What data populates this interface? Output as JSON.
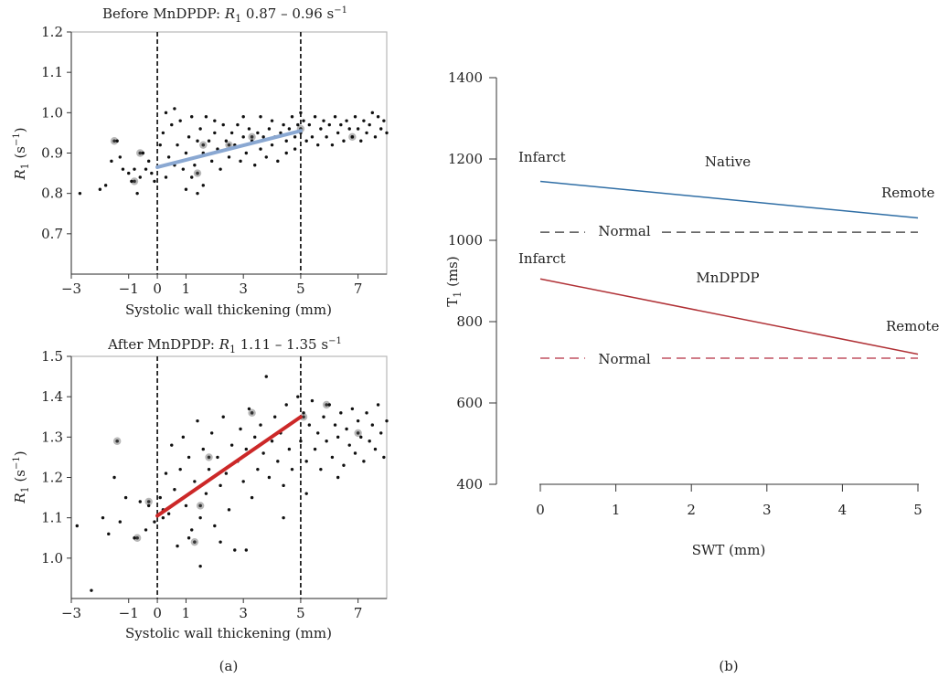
{
  "panels": {
    "a_label": "(a)",
    "b_label": "(b)"
  },
  "chart_data": [
    {
      "id": "before",
      "type": "scatter",
      "title_prefix": "Before MnDPDP: ",
      "title_symbol": "R",
      "title_sub": "1",
      "title_suffix": " 0.87 – 0.96 s",
      "title_sup": "−1",
      "xlabel": "Systolic wall thickening (mm)",
      "ylabel_symbol": "R",
      "ylabel_sub": "1",
      "ylabel_unit": " (s",
      "ylabel_sup": "−1",
      "ylabel_close": ")",
      "xlim": [
        -3,
        8
      ],
      "ylim": [
        0.6,
        1.2
      ],
      "xticks": [
        -3,
        -1,
        0,
        1,
        3,
        5,
        7
      ],
      "xtick_labels": [
        "−3",
        "−1",
        "0",
        "1",
        "3",
        "5",
        "7"
      ],
      "yticks": [
        0.7,
        0.8,
        0.9,
        1.0,
        1.1,
        1.2
      ],
      "ytick_labels": [
        "0.7",
        "0.8",
        "0.9",
        "1.0",
        "1.1",
        "1.2"
      ],
      "vlines": [
        0,
        5
      ],
      "fit": {
        "x": [
          0,
          5
        ],
        "y": [
          0.865,
          0.955
        ],
        "color": "#8aa8d2"
      },
      "points": [
        [
          -2.7,
          0.8
        ],
        [
          -2.0,
          0.81
        ],
        [
          -1.8,
          0.82
        ],
        [
          -1.6,
          0.88
        ],
        [
          -1.4,
          0.93
        ],
        [
          -1.3,
          0.89
        ],
        [
          -1.2,
          0.86
        ],
        [
          -1.0,
          0.85
        ],
        [
          -0.9,
          0.83
        ],
        [
          -0.8,
          0.86
        ],
        [
          -0.7,
          0.8
        ],
        [
          -0.6,
          0.84
        ],
        [
          -0.5,
          0.9
        ],
        [
          -0.4,
          0.86
        ],
        [
          -0.3,
          0.88
        ],
        [
          -0.2,
          0.85
        ],
        [
          -0.1,
          0.83
        ],
        [
          0.1,
          0.92
        ],
        [
          0.2,
          0.95
        ],
        [
          0.3,
          1.0
        ],
        [
          0.3,
          0.84
        ],
        [
          0.4,
          0.89
        ],
        [
          0.5,
          0.97
        ],
        [
          0.6,
          1.01
        ],
        [
          0.6,
          0.87
        ],
        [
          0.7,
          0.92
        ],
        [
          0.8,
          0.98
        ],
        [
          0.9,
          0.86
        ],
        [
          1.0,
          0.9
        ],
        [
          1.0,
          0.81
        ],
        [
          1.1,
          0.94
        ],
        [
          1.2,
          0.99
        ],
        [
          1.2,
          0.84
        ],
        [
          1.3,
          0.87
        ],
        [
          1.4,
          0.93
        ],
        [
          1.4,
          0.8
        ],
        [
          1.5,
          0.96
        ],
        [
          1.6,
          0.9
        ],
        [
          1.6,
          0.82
        ],
        [
          1.7,
          0.99
        ],
        [
          1.8,
          0.93
        ],
        [
          1.9,
          0.88
        ],
        [
          2.0,
          0.95
        ],
        [
          2.0,
          0.98
        ],
        [
          2.1,
          0.91
        ],
        [
          2.2,
          0.86
        ],
        [
          2.3,
          0.97
        ],
        [
          2.4,
          0.93
        ],
        [
          2.5,
          0.89
        ],
        [
          2.6,
          0.95
        ],
        [
          2.7,
          0.92
        ],
        [
          2.8,
          0.97
        ],
        [
          2.9,
          0.88
        ],
        [
          3.0,
          0.94
        ],
        [
          3.0,
          0.99
        ],
        [
          3.1,
          0.9
        ],
        [
          3.2,
          0.96
        ],
        [
          3.3,
          0.93
        ],
        [
          3.4,
          0.87
        ],
        [
          3.5,
          0.95
        ],
        [
          3.6,
          0.99
        ],
        [
          3.6,
          0.91
        ],
        [
          3.7,
          0.94
        ],
        [
          3.8,
          0.89
        ],
        [
          3.9,
          0.96
        ],
        [
          4.0,
          0.92
        ],
        [
          4.0,
          0.98
        ],
        [
          4.1,
          0.94
        ],
        [
          4.2,
          0.88
        ],
        [
          4.3,
          0.95
        ],
        [
          4.4,
          0.97
        ],
        [
          4.5,
          0.93
        ],
        [
          4.5,
          0.9
        ],
        [
          4.6,
          0.96
        ],
        [
          4.7,
          0.99
        ],
        [
          4.8,
          0.94
        ],
        [
          4.8,
          0.91
        ],
        [
          4.9,
          0.97
        ],
        [
          5.0,
          1.0
        ],
        [
          5.0,
          0.95
        ],
        [
          5.1,
          0.98
        ],
        [
          5.2,
          0.93
        ],
        [
          5.3,
          0.97
        ],
        [
          5.4,
          0.94
        ],
        [
          5.5,
          0.99
        ],
        [
          5.6,
          0.92
        ],
        [
          5.7,
          0.96
        ],
        [
          5.8,
          0.98
        ],
        [
          5.9,
          0.94
        ],
        [
          6.0,
          0.97
        ],
        [
          6.1,
          0.92
        ],
        [
          6.2,
          0.99
        ],
        [
          6.3,
          0.95
        ],
        [
          6.4,
          0.97
        ],
        [
          6.5,
          0.93
        ],
        [
          6.6,
          0.98
        ],
        [
          6.7,
          0.96
        ],
        [
          6.8,
          0.94
        ],
        [
          6.9,
          0.99
        ],
        [
          7.0,
          0.96
        ],
        [
          7.1,
          0.93
        ],
        [
          7.2,
          0.98
        ],
        [
          7.3,
          0.95
        ],
        [
          7.4,
          0.97
        ],
        [
          7.5,
          1.0
        ],
        [
          7.6,
          0.94
        ],
        [
          7.7,
          0.99
        ],
        [
          7.8,
          0.96
        ],
        [
          7.9,
          0.98
        ],
        [
          8.0,
          0.95
        ]
      ],
      "highlight_points": [
        [
          -1.5,
          0.93
        ],
        [
          -0.6,
          0.9
        ],
        [
          -0.8,
          0.83
        ],
        [
          1.4,
          0.85
        ],
        [
          1.6,
          0.92
        ],
        [
          2.5,
          0.92
        ],
        [
          3.3,
          0.94
        ],
        [
          5.0,
          0.96
        ],
        [
          6.8,
          0.94
        ]
      ]
    },
    {
      "id": "after",
      "type": "scatter",
      "title_prefix": "After MnDPDP: ",
      "title_symbol": "R",
      "title_sub": "1",
      "title_suffix": " 1.11 – 1.35 s",
      "title_sup": "−1",
      "xlabel": "Systolic wall thickening (mm)",
      "ylabel_symbol": "R",
      "ylabel_sub": "1",
      "ylabel_unit": " (s",
      "ylabel_sup": "−1",
      "ylabel_close": ")",
      "xlim": [
        -3,
        8
      ],
      "ylim": [
        0.9,
        1.5
      ],
      "xticks": [
        -3,
        -1,
        0,
        1,
        3,
        5,
        7
      ],
      "xtick_labels": [
        "−3",
        "−1",
        "0",
        "1",
        "3",
        "5",
        "7"
      ],
      "yticks": [
        1.0,
        1.1,
        1.2,
        1.3,
        1.4,
        1.5
      ],
      "ytick_labels": [
        "1.0",
        "1.1",
        "1.2",
        "1.3",
        "1.4",
        "1.5"
      ],
      "vlines": [
        0,
        5
      ],
      "fit": {
        "x": [
          0,
          5
        ],
        "y": [
          1.105,
          1.35
        ],
        "color": "#cc2828"
      },
      "points": [
        [
          -2.8,
          1.08
        ],
        [
          -2.3,
          0.92
        ],
        [
          -1.9,
          1.1
        ],
        [
          -1.7,
          1.06
        ],
        [
          -1.5,
          1.2
        ],
        [
          -1.3,
          1.09
        ],
        [
          -1.1,
          1.15
        ],
        [
          -0.8,
          1.05
        ],
        [
          -0.6,
          1.14
        ],
        [
          -0.4,
          1.07
        ],
        [
          -0.3,
          1.13
        ],
        [
          -0.1,
          1.09
        ],
        [
          0.1,
          1.15
        ],
        [
          0.2,
          1.12
        ],
        [
          0.3,
          1.21
        ],
        [
          0.4,
          1.11
        ],
        [
          0.5,
          1.28
        ],
        [
          0.6,
          1.17
        ],
        [
          0.7,
          1.03
        ],
        [
          0.8,
          1.22
        ],
        [
          0.9,
          1.3
        ],
        [
          1.0,
          1.13
        ],
        [
          1.1,
          1.25
        ],
        [
          1.2,
          1.07
        ],
        [
          1.3,
          1.19
        ],
        [
          1.4,
          1.34
        ],
        [
          1.5,
          1.1
        ],
        [
          1.5,
          0.98
        ],
        [
          1.6,
          1.27
        ],
        [
          1.7,
          1.16
        ],
        [
          1.8,
          1.22
        ],
        [
          1.9,
          1.31
        ],
        [
          2.0,
          1.08
        ],
        [
          2.1,
          1.25
        ],
        [
          2.2,
          1.18
        ],
        [
          2.3,
          1.35
        ],
        [
          2.4,
          1.21
        ],
        [
          2.5,
          1.12
        ],
        [
          2.6,
          1.28
        ],
        [
          2.7,
          1.02
        ],
        [
          2.8,
          1.24
        ],
        [
          2.9,
          1.32
        ],
        [
          3.0,
          1.19
        ],
        [
          3.1,
          1.27
        ],
        [
          3.2,
          1.37
        ],
        [
          3.3,
          1.15
        ],
        [
          3.4,
          1.3
        ],
        [
          3.5,
          1.22
        ],
        [
          3.6,
          1.33
        ],
        [
          3.7,
          1.26
        ],
        [
          3.8,
          1.45
        ],
        [
          3.9,
          1.2
        ],
        [
          4.0,
          1.29
        ],
        [
          4.1,
          1.35
        ],
        [
          4.2,
          1.24
        ],
        [
          4.3,
          1.31
        ],
        [
          4.4,
          1.18
        ],
        [
          4.5,
          1.38
        ],
        [
          4.6,
          1.27
        ],
        [
          4.7,
          1.22
        ],
        [
          4.8,
          1.34
        ],
        [
          4.9,
          1.4
        ],
        [
          5.0,
          1.29
        ],
        [
          5.1,
          1.36
        ],
        [
          5.2,
          1.24
        ],
        [
          5.3,
          1.33
        ],
        [
          5.4,
          1.39
        ],
        [
          5.5,
          1.27
        ],
        [
          5.6,
          1.31
        ],
        [
          5.7,
          1.22
        ],
        [
          5.8,
          1.35
        ],
        [
          5.9,
          1.29
        ],
        [
          6.0,
          1.38
        ],
        [
          6.1,
          1.25
        ],
        [
          6.2,
          1.33
        ],
        [
          6.3,
          1.3
        ],
        [
          6.4,
          1.36
        ],
        [
          6.5,
          1.23
        ],
        [
          6.6,
          1.32
        ],
        [
          6.7,
          1.28
        ],
        [
          6.8,
          1.37
        ],
        [
          6.9,
          1.26
        ],
        [
          7.0,
          1.34
        ],
        [
          7.1,
          1.3
        ],
        [
          7.2,
          1.24
        ],
        [
          7.3,
          1.36
        ],
        [
          7.4,
          1.29
        ],
        [
          7.5,
          1.33
        ],
        [
          7.6,
          1.27
        ],
        [
          7.7,
          1.38
        ],
        [
          7.8,
          1.31
        ],
        [
          7.9,
          1.25
        ],
        [
          8.0,
          1.34
        ],
        [
          6.3,
          1.2
        ],
        [
          5.2,
          1.16
        ],
        [
          4.4,
          1.1
        ],
        [
          3.1,
          1.02
        ],
        [
          2.2,
          1.04
        ],
        [
          1.1,
          1.05
        ],
        [
          0.2,
          1.1
        ]
      ],
      "highlight_points": [
        [
          -1.4,
          1.29
        ],
        [
          -0.3,
          1.14
        ],
        [
          -0.7,
          1.05
        ],
        [
          1.5,
          1.13
        ],
        [
          1.3,
          1.04
        ],
        [
          1.8,
          1.25
        ],
        [
          3.3,
          1.36
        ],
        [
          5.1,
          1.35
        ],
        [
          5.9,
          1.38
        ],
        [
          7.0,
          1.31
        ]
      ]
    },
    {
      "id": "b",
      "type": "line",
      "xlabel": "SWT (mm)",
      "ylabel": "T",
      "ylabel_sub": "1",
      "ylabel_unit": " (ms)",
      "xlim": [
        0,
        5
      ],
      "ylim": [
        400,
        1400
      ],
      "xticks": [
        0,
        1,
        2,
        3,
        4,
        5
      ],
      "xtick_labels": [
        "0",
        "1",
        "2",
        "3",
        "4",
        "5"
      ],
      "yticks": [
        400,
        600,
        800,
        1000,
        1200,
        1400
      ],
      "ytick_labels": [
        "400",
        "600",
        "800",
        "1000",
        "1200",
        "1400"
      ],
      "series": [
        {
          "name": "Native",
          "x": [
            0,
            5
          ],
          "y": [
            1145,
            1055
          ],
          "color": "#2f6ea5",
          "dash": false
        },
        {
          "name": "MnDPDP",
          "x": [
            0,
            5
          ],
          "y": [
            905,
            720
          ],
          "color": "#b03035",
          "dash": false
        },
        {
          "name": "Normal",
          "x": [
            0,
            5
          ],
          "y": [
            1020,
            1020
          ],
          "color": "#555555",
          "dash": true
        },
        {
          "name": "Normal",
          "x": [
            0,
            5
          ],
          "y": [
            710,
            710
          ],
          "color": "#c05060",
          "dash": true
        }
      ],
      "annotations": {
        "native_infarct": "Infarct",
        "native_remote": "Remote",
        "native_label": "Native",
        "native_normal": "Normal",
        "mn_infarct": "Infarct",
        "mn_remote": "Remote",
        "mn_label": "MnDPDP",
        "mn_normal": "Normal"
      }
    }
  ]
}
